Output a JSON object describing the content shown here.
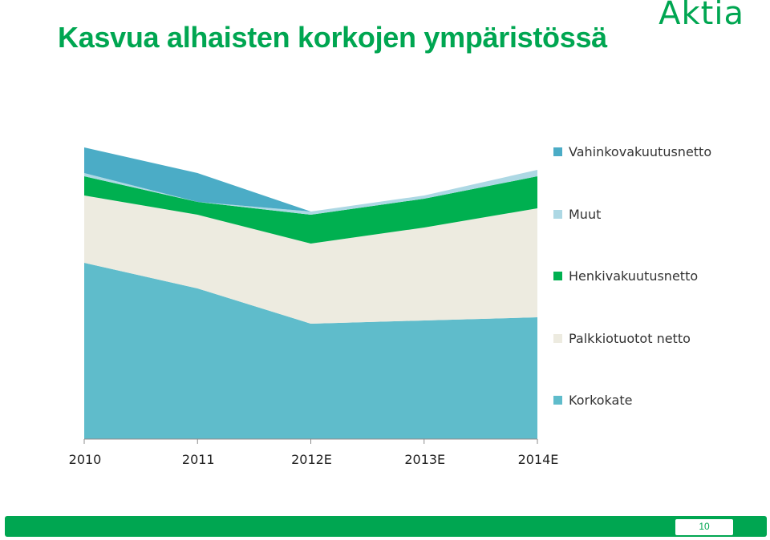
{
  "slide": {
    "title": "Kasvua alhaisten korkojen ympäristössä",
    "logo_text": "Aktia",
    "page_number": "10",
    "brand_color": "#00A651"
  },
  "chart_data": {
    "type": "area",
    "stacked": true,
    "categories": [
      "2010",
      "2011",
      "2012E",
      "2013E",
      "2014E"
    ],
    "series": [
      {
        "name": "Korkokate",
        "color": "#5FBCCB",
        "values": [
          55,
          47,
          36,
          37,
          38
        ]
      },
      {
        "name": "Palkkiotuotot netto",
        "color": "#EDEBE0",
        "values": [
          21,
          23,
          25,
          29,
          34
        ]
      },
      {
        "name": "Henkivakuutusnetto",
        "color": "#00B050",
        "values": [
          6,
          4,
          9,
          9,
          10
        ]
      },
      {
        "name": "Muut",
        "color": "#ADD8E4",
        "values": [
          1,
          0,
          1,
          1,
          2
        ]
      },
      {
        "name": "Vahinkovakuutusnetto",
        "color": "#4BACC6",
        "values": [
          8,
          9,
          0,
          0,
          0
        ]
      }
    ],
    "ylim": [
      0,
      100
    ],
    "grid": false,
    "legend_position": "right",
    "xlabel": "",
    "ylabel": ""
  }
}
